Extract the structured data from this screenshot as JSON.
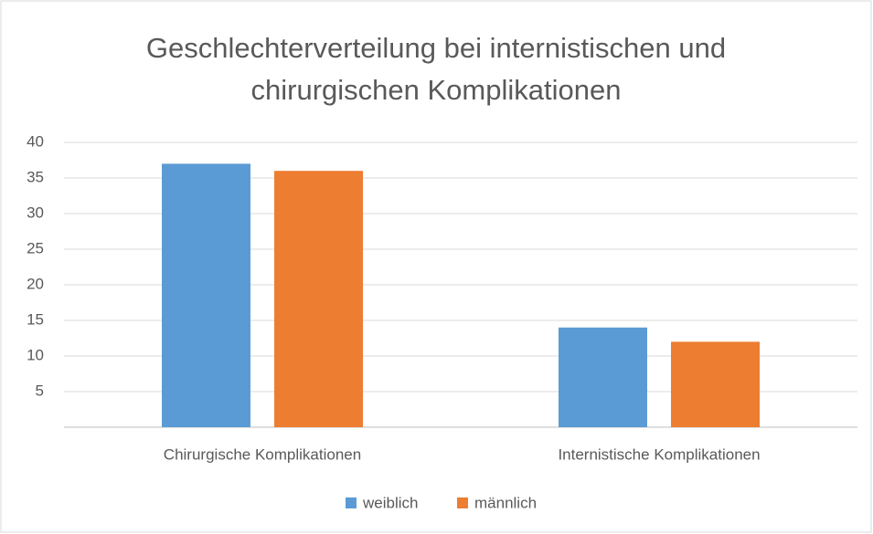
{
  "chart_data": {
    "type": "bar",
    "title": "Geschlechterverteilung bei internistischen und chirurgischen Komplikationen",
    "categories": [
      "Chirurgische Komplikationen",
      "Internistische Komplikationen"
    ],
    "series": [
      {
        "name": "weiblich",
        "color": "#5b9bd5",
        "values": [
          37,
          14
        ]
      },
      {
        "name": "männlich",
        "color": "#ed7d31",
        "values": [
          36,
          12
        ]
      }
    ],
    "ylim": [
      0,
      40
    ],
    "yticks": [
      5,
      10,
      15,
      20,
      25,
      30,
      35,
      40
    ],
    "grid": true,
    "legend": "bottom"
  }
}
